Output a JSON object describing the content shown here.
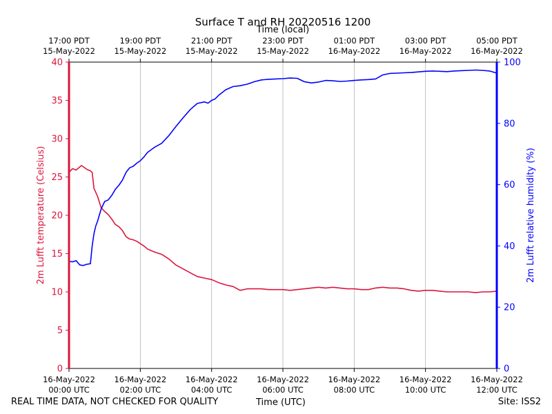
{
  "chart_data": {
    "type": "line",
    "title": "Surface T and RH 20220516 1200",
    "top_axis_label": "Time (local)",
    "xlabel": "Time (UTC)",
    "ylabel_left": "2m Lufft temperature (Celsius)",
    "ylabel_right": "2m Lufft relative humidity (%)",
    "x_unit": "hours since 16-May-2022 00:00 UTC",
    "xlim": [
      0,
      12
    ],
    "ylim_left": [
      0,
      40
    ],
    "ylim_right": [
      0,
      100
    ],
    "left_ticks": [
      "0",
      "5",
      "10",
      "15",
      "20",
      "25",
      "30",
      "35",
      "40"
    ],
    "right_ticks": [
      "0",
      "20",
      "40",
      "60",
      "80",
      "100"
    ],
    "bottom_ticks": [
      {
        "x": 0,
        "line1": "16-May-2022",
        "line2": "00:00 UTC"
      },
      {
        "x": 2,
        "line1": "16-May-2022",
        "line2": "02:00 UTC"
      },
      {
        "x": 4,
        "line1": "16-May-2022",
        "line2": "04:00 UTC"
      },
      {
        "x": 6,
        "line1": "16-May-2022",
        "line2": "06:00 UTC"
      },
      {
        "x": 8,
        "line1": "16-May-2022",
        "line2": "08:00 UTC"
      },
      {
        "x": 10,
        "line1": "16-May-2022",
        "line2": "10:00 UTC"
      },
      {
        "x": 12,
        "line1": "16-May-2022",
        "line2": "12:00 UTC"
      }
    ],
    "top_ticks": [
      {
        "x": 0,
        "line1": "17:00 PDT",
        "line2": "15-May-2022"
      },
      {
        "x": 2,
        "line1": "19:00 PDT",
        "line2": "15-May-2022"
      },
      {
        "x": 4,
        "line1": "21:00 PDT",
        "line2": "15-May-2022"
      },
      {
        "x": 6,
        "line1": "23:00 PDT",
        "line2": "15-May-2022"
      },
      {
        "x": 8,
        "line1": "01:00 PDT",
        "line2": "16-May-2022"
      },
      {
        "x": 10,
        "line1": "03:00 PDT",
        "line2": "16-May-2022"
      },
      {
        "x": 12,
        "line1": "05:00 PDT",
        "line2": "16-May-2022"
      }
    ],
    "grid": "vertical",
    "series": [
      {
        "name": "2m Lufft temperature",
        "axis": "left",
        "color": "#dc143c",
        "x": [
          0.0,
          0.1,
          0.2,
          0.35,
          0.5,
          0.6,
          0.65,
          0.7,
          0.8,
          0.9,
          1.0,
          1.1,
          1.2,
          1.3,
          1.4,
          1.5,
          1.6,
          1.7,
          1.8,
          1.9,
          2.0,
          2.1,
          2.2,
          2.3,
          2.4,
          2.6,
          2.8,
          3.0,
          3.2,
          3.4,
          3.6,
          3.8,
          4.0,
          4.2,
          4.4,
          4.6,
          4.8,
          5.0,
          5.2,
          5.4,
          5.6,
          5.8,
          6.0,
          6.2,
          6.4,
          6.6,
          6.8,
          7.0,
          7.2,
          7.4,
          7.6,
          7.8,
          8.0,
          8.2,
          8.4,
          8.6,
          8.8,
          9.0,
          9.2,
          9.4,
          9.6,
          9.8,
          10.0,
          10.2,
          10.4,
          10.6,
          10.8,
          11.0,
          11.2,
          11.4,
          11.6,
          11.8,
          12.0
        ],
        "values": [
          25.6,
          26.1,
          25.9,
          26.5,
          26.0,
          25.8,
          25.6,
          23.5,
          22.5,
          21.0,
          20.5,
          20.1,
          19.5,
          18.8,
          18.5,
          18.0,
          17.2,
          16.9,
          16.8,
          16.6,
          16.3,
          16.0,
          15.6,
          15.4,
          15.2,
          14.9,
          14.3,
          13.5,
          13.0,
          12.5,
          12.0,
          11.8,
          11.6,
          11.2,
          10.9,
          10.7,
          10.2,
          10.4,
          10.4,
          10.4,
          10.3,
          10.3,
          10.3,
          10.2,
          10.3,
          10.4,
          10.5,
          10.6,
          10.5,
          10.6,
          10.5,
          10.4,
          10.4,
          10.3,
          10.3,
          10.5,
          10.6,
          10.5,
          10.5,
          10.4,
          10.2,
          10.1,
          10.2,
          10.2,
          10.1,
          10.0,
          10.0,
          10.0,
          10.0,
          9.9,
          10.0,
          10.0,
          10.1
        ]
      },
      {
        "name": "2m Lufft relative humidity",
        "axis": "right",
        "color": "#0000ff",
        "x": [
          0.0,
          0.1,
          0.2,
          0.3,
          0.4,
          0.5,
          0.6,
          0.65,
          0.7,
          0.75,
          0.8,
          0.9,
          1.0,
          1.1,
          1.2,
          1.3,
          1.4,
          1.5,
          1.6,
          1.7,
          1.8,
          1.9,
          2.0,
          2.1,
          2.2,
          2.4,
          2.6,
          2.8,
          3.0,
          3.2,
          3.4,
          3.6,
          3.8,
          3.9,
          4.0,
          4.1,
          4.2,
          4.4,
          4.6,
          4.8,
          5.0,
          5.2,
          5.4,
          5.6,
          5.8,
          6.0,
          6.2,
          6.4,
          6.6,
          6.8,
          7.0,
          7.2,
          7.4,
          7.6,
          7.8,
          8.0,
          8.2,
          8.4,
          8.6,
          8.8,
          9.0,
          9.2,
          9.4,
          9.6,
          9.8,
          10.0,
          10.2,
          10.4,
          10.6,
          10.8,
          11.0,
          11.2,
          11.4,
          11.6,
          11.8,
          12.0
        ],
        "values": [
          35.0,
          34.8,
          35.2,
          33.8,
          33.6,
          34.0,
          34.2,
          40.0,
          44.0,
          46.5,
          48.0,
          52.0,
          54.5,
          55.0,
          56.5,
          58.5,
          59.8,
          61.5,
          64.0,
          65.5,
          66.0,
          67.0,
          67.8,
          69.0,
          70.5,
          72.2,
          73.5,
          76.0,
          79.0,
          81.8,
          84.5,
          86.5,
          87.0,
          86.6,
          87.5,
          88.0,
          89.2,
          91.0,
          92.0,
          92.3,
          92.8,
          93.6,
          94.2,
          94.4,
          94.5,
          94.6,
          94.8,
          94.7,
          93.6,
          93.2,
          93.5,
          94.0,
          93.9,
          93.7,
          93.8,
          94.0,
          94.2,
          94.3,
          94.5,
          95.8,
          96.3,
          96.4,
          96.5,
          96.6,
          96.8,
          97.0,
          97.1,
          97.0,
          96.9,
          97.1,
          97.2,
          97.3,
          97.4,
          97.3,
          97.1,
          96.4
        ]
      }
    ]
  },
  "footer": {
    "left_note": "REAL TIME DATA, NOT CHECKED FOR QUALITY",
    "center_label": "Time (UTC)",
    "right_note": "Site: ISS2"
  }
}
